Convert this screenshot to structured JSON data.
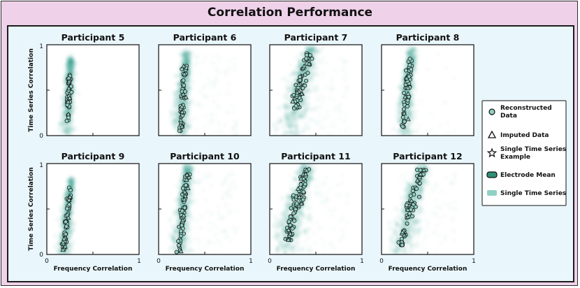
{
  "title": "Correlation Performance",
  "colors": {
    "cloud": "#2e9e8a",
    "mean_fill": "#2e8f76",
    "marker_fill": "#8fd1c4",
    "marker_stroke": "#1a1a1a",
    "panel_bg": "#e9f6fb",
    "frame_bg": "#efd2ea"
  },
  "chart_data": {
    "type": "scatter",
    "xlabel": "Frequency Correlation",
    "ylabel": "Time Series Correlation",
    "xlim": [
      0,
      1
    ],
    "ylim": [
      0,
      1
    ],
    "x_ticks": [
      "0",
      "1"
    ],
    "y_ticks": [
      "0",
      "1"
    ],
    "legend": {
      "position": "right",
      "entries": [
        {
          "symbol": "circle",
          "lines": [
            "Reconstructed",
            "Data"
          ]
        },
        {
          "symbol": "triangle",
          "lines": [
            "Imputed Data"
          ]
        },
        {
          "symbol": "star",
          "lines": [
            "Single Time Series",
            "Example"
          ]
        },
        {
          "symbol": "rounded-rect-dark",
          "lines": [
            "Electrode Mean"
          ]
        },
        {
          "symbol": "rounded-rect-light",
          "lines": [
            "Single Time Series"
          ]
        }
      ]
    },
    "panels": [
      {
        "title": "Participant 5",
        "x_start": 0.22,
        "x_end": 0.26,
        "y_min": 0.12,
        "y_max": 0.68,
        "spread": 0.03,
        "cloud_top": 0.85,
        "haze": 0.0,
        "n_circles": 40,
        "n_triangles": 6
      },
      {
        "title": "Participant 6",
        "x_start": 0.24,
        "x_end": 0.3,
        "y_min": 0.05,
        "y_max": 0.78,
        "spread": 0.04,
        "cloud_top": 0.92,
        "haze": 0.5,
        "n_circles": 45,
        "n_triangles": 8
      },
      {
        "title": "Participant 7",
        "x_start": 0.22,
        "x_end": 0.45,
        "y_min": 0.3,
        "y_max": 0.92,
        "spread": 0.07,
        "cloud_top": 0.97,
        "haze": 0.6,
        "n_circles": 60,
        "n_triangles": 10
      },
      {
        "title": "Participant 8",
        "x_start": 0.24,
        "x_end": 0.33,
        "y_min": 0.08,
        "y_max": 0.9,
        "spread": 0.04,
        "cloud_top": 0.95,
        "haze": 0.1,
        "n_circles": 50,
        "n_triangles": 6
      },
      {
        "title": "Participant 9",
        "x_start": 0.18,
        "x_end": 0.27,
        "y_min": 0.02,
        "y_max": 0.74,
        "spread": 0.03,
        "cloud_top": 0.82,
        "haze": 0.0,
        "n_circles": 45,
        "n_triangles": 8
      },
      {
        "title": "Participant 10",
        "x_start": 0.23,
        "x_end": 0.32,
        "y_min": 0.02,
        "y_max": 0.92,
        "spread": 0.04,
        "cloud_top": 0.97,
        "haze": 0.6,
        "n_circles": 60,
        "n_triangles": 10
      },
      {
        "title": "Participant 11",
        "x_start": 0.17,
        "x_end": 0.42,
        "y_min": 0.15,
        "y_max": 0.95,
        "spread": 0.07,
        "cloud_top": 0.98,
        "haze": 0.5,
        "n_circles": 75,
        "n_triangles": 12
      },
      {
        "title": "Participant 12",
        "x_start": 0.21,
        "x_end": 0.45,
        "y_min": 0.1,
        "y_max": 0.94,
        "spread": 0.06,
        "cloud_top": 0.98,
        "haze": 0.4,
        "n_circles": 60,
        "n_triangles": 8
      }
    ]
  }
}
